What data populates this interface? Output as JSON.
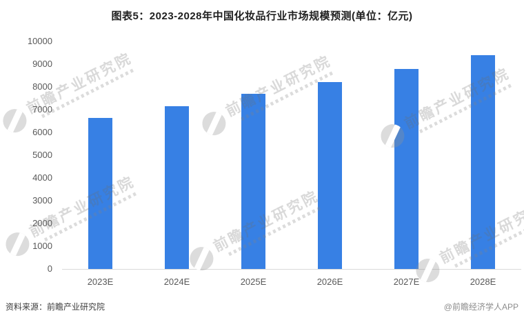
{
  "title": "图表5：2023-2028年中国化妆品行业市场规模预测(单位：亿元)",
  "chart_data": {
    "type": "bar",
    "title": "图表5：2023-2028年中国化妆品行业市场规模预测(单位：亿元)",
    "categories": [
      "2023E",
      "2024E",
      "2025E",
      "2026E",
      "2027E",
      "2028E"
    ],
    "values": [
      6650,
      7150,
      7700,
      8200,
      8800,
      9400
    ],
    "unit": "亿元",
    "xlabel": "",
    "ylabel": "",
    "ylim": [
      0,
      10000
    ],
    "yticks": [
      0,
      1000,
      2000,
      3000,
      4000,
      5000,
      6000,
      7000,
      8000,
      9000,
      10000
    ],
    "grid": false,
    "legend": false,
    "bar_color": "#3780e4"
  },
  "footer": {
    "source": "资料来源：前瞻产业研究院",
    "credit": "@前瞻经济学人APP"
  },
  "watermark": {
    "text": "前瞻产业研究院"
  },
  "colors": {
    "bar": "#3780e4",
    "title": "#1f1f1f",
    "axis_label": "#595959",
    "axis_line": "#d9d9d9",
    "source_text": "#3d3d3d",
    "credit_text": "#8c8c8c"
  }
}
